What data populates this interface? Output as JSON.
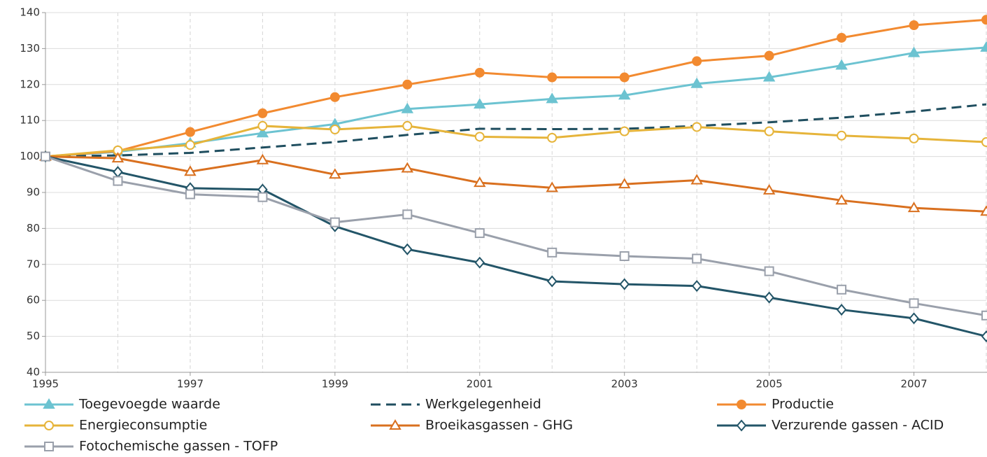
{
  "chart_data": {
    "type": "line",
    "x": [
      1995,
      1996,
      1997,
      1998,
      1999,
      2000,
      2001,
      2002,
      2003,
      2004,
      2005,
      2006,
      2007,
      2008
    ],
    "xlim": [
      1995,
      2008
    ],
    "xticks": [
      1995,
      1997,
      1999,
      2001,
      2003,
      2005,
      2007
    ],
    "ylim": [
      40,
      140
    ],
    "yticks": [
      40,
      50,
      60,
      70,
      80,
      90,
      100,
      110,
      120,
      130,
      140
    ],
    "grid": true,
    "legend": "bottom",
    "series": [
      {
        "name": "Toegevoegde waarde",
        "color": "#6cc3d1",
        "marker": "triangle",
        "filled": true,
        "dashed": false,
        "values": [
          100,
          101.3,
          103.7,
          106.5,
          109,
          113.2,
          114.5,
          116,
          117,
          120.2,
          122,
          125.3,
          128.8,
          130.3
        ]
      },
      {
        "name": "Werkgelegenheid",
        "color": "#1f4e5f",
        "marker": "none",
        "filled": false,
        "dashed": true,
        "values": [
          100,
          100.3,
          101,
          102.5,
          104,
          106,
          107.7,
          107.6,
          107.7,
          108.5,
          109.5,
          110.8,
          112.5,
          114.5
        ]
      },
      {
        "name": "Productie",
        "color": "#f28a30",
        "marker": "circle",
        "filled": true,
        "dashed": false,
        "values": [
          100,
          101.5,
          106.8,
          112,
          116.5,
          120,
          123.3,
          122,
          122,
          126.5,
          128,
          133,
          136.5,
          138
        ]
      },
      {
        "name": "Energieconsumptie",
        "color": "#e6b43a",
        "marker": "circle",
        "filled": false,
        "dashed": false,
        "values": [
          100,
          101.7,
          103.2,
          108.5,
          107.5,
          108.5,
          105.5,
          105.2,
          107,
          108.2,
          107,
          105.8,
          105,
          104
        ]
      },
      {
        "name": "Broeikasgassen - GHG",
        "color": "#d9701f",
        "marker": "triangle",
        "filled": false,
        "dashed": false,
        "values": [
          100,
          99.5,
          95.8,
          99,
          95,
          96.7,
          92.7,
          91.3,
          92.3,
          93.4,
          90.6,
          87.8,
          85.7,
          84.7
        ]
      },
      {
        "name": "Verzurende gassen - ACID",
        "color": "#235568",
        "marker": "diamond",
        "filled": false,
        "dashed": false,
        "values": [
          100,
          95.7,
          91.2,
          90.8,
          80.6,
          74.2,
          70.5,
          65.3,
          64.5,
          64,
          60.8,
          57.4,
          55,
          50
        ]
      },
      {
        "name": "Fotochemische gassen - TOFP",
        "color": "#9aa0ab",
        "marker": "square",
        "filled": false,
        "dashed": false,
        "values": [
          100,
          93.2,
          89.5,
          88.7,
          81.7,
          83.9,
          78.7,
          73.3,
          72.3,
          71.6,
          68.1,
          63,
          59.2,
          55.8
        ]
      }
    ]
  }
}
